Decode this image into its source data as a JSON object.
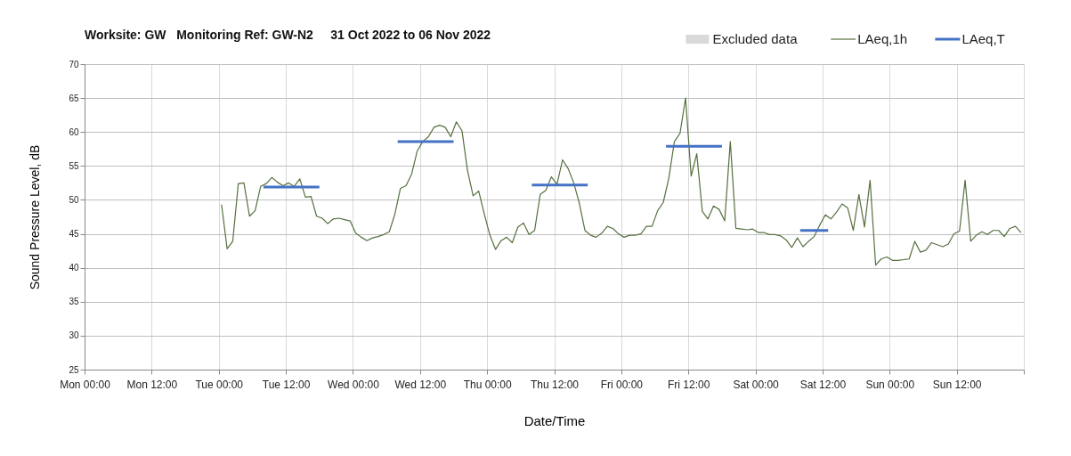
{
  "chart_data": {
    "type": "line",
    "title": "Worksite: GW   Monitoring Ref: GW-N2     31 Oct 2022 to 06 Nov 2022",
    "xlabel": "Date/Time",
    "ylabel": "Sound Pressure Level, dB",
    "xlim": [
      "2022-10-31T00:00",
      "2022-11-07T00:00"
    ],
    "ylim": [
      25,
      70
    ],
    "xticks": [
      {
        "value": "2022-10-31T00:00",
        "label": "Mon 00:00"
      },
      {
        "value": "2022-10-31T12:00",
        "label": "Mon 12:00"
      },
      {
        "value": "2022-11-01T00:00",
        "label": "Tue 00:00"
      },
      {
        "value": "2022-11-01T12:00",
        "label": "Tue 12:00"
      },
      {
        "value": "2022-11-02T00:00",
        "label": "Wed 00:00"
      },
      {
        "value": "2022-11-02T12:00",
        "label": "Wed 12:00"
      },
      {
        "value": "2022-11-03T00:00",
        "label": "Thu 00:00"
      },
      {
        "value": "2022-11-03T12:00",
        "label": "Thu 12:00"
      },
      {
        "value": "2022-11-04T00:00",
        "label": "Fri 00:00"
      },
      {
        "value": "2022-11-04T12:00",
        "label": "Fri 12:00"
      },
      {
        "value": "2022-11-05T00:00",
        "label": "Sat 00:00"
      },
      {
        "value": "2022-11-05T12:00",
        "label": "Sat 12:00"
      },
      {
        "value": "2022-11-06T00:00",
        "label": "Sun 00:00"
      },
      {
        "value": "2022-11-06T12:00",
        "label": "Sun 12:00"
      },
      {
        "value": "2022-11-07T00:00",
        "label": null
      }
    ],
    "yticks": [
      25,
      30,
      35,
      40,
      45,
      50,
      55,
      60,
      65,
      70
    ],
    "grid": true,
    "legend": "top right",
    "series": [
      {
        "name": "Excluded data",
        "type": "bar",
        "color": "#d9d9d9"
      },
      {
        "name": "LAeq,1h",
        "color": "#56703f",
        "x": [
          "2022-11-01T00:30",
          "2022-11-01T01:30",
          "2022-11-01T02:30",
          "2022-11-01T03:30",
          "2022-11-01T04:30",
          "2022-11-01T05:30",
          "2022-11-01T06:30",
          "2022-11-01T07:30",
          "2022-11-01T08:30",
          "2022-11-01T09:30",
          "2022-11-01T10:30",
          "2022-11-01T11:30",
          "2022-11-01T12:30",
          "2022-11-01T13:30",
          "2022-11-01T14:30",
          "2022-11-01T15:30",
          "2022-11-01T16:30",
          "2022-11-01T17:30",
          "2022-11-01T18:30",
          "2022-11-01T19:30",
          "2022-11-01T20:30",
          "2022-11-01T21:30",
          "2022-11-01T22:30",
          "2022-11-01T23:30",
          "2022-11-02T00:30",
          "2022-11-02T01:30",
          "2022-11-02T02:30",
          "2022-11-02T03:30",
          "2022-11-02T04:30",
          "2022-11-02T05:30",
          "2022-11-02T06:30",
          "2022-11-02T07:30",
          "2022-11-02T08:30",
          "2022-11-02T09:30",
          "2022-11-02T10:30",
          "2022-11-02T11:30",
          "2022-11-02T12:30",
          "2022-11-02T13:30",
          "2022-11-02T14:30",
          "2022-11-02T15:30",
          "2022-11-02T16:30",
          "2022-11-02T17:30",
          "2022-11-02T18:30",
          "2022-11-02T19:30",
          "2022-11-02T20:30",
          "2022-11-02T21:30",
          "2022-11-02T22:30",
          "2022-11-02T23:30",
          "2022-11-03T00:30",
          "2022-11-03T01:30",
          "2022-11-03T02:30",
          "2022-11-03T03:30",
          "2022-11-03T04:30",
          "2022-11-03T05:30",
          "2022-11-03T06:30",
          "2022-11-03T07:30",
          "2022-11-03T08:30",
          "2022-11-03T09:30",
          "2022-11-03T10:30",
          "2022-11-03T11:30",
          "2022-11-03T12:30",
          "2022-11-03T13:30",
          "2022-11-03T14:30",
          "2022-11-03T15:30",
          "2022-11-03T16:30",
          "2022-11-03T17:30",
          "2022-11-03T18:30",
          "2022-11-03T19:30",
          "2022-11-03T20:30",
          "2022-11-03T21:30",
          "2022-11-03T22:30",
          "2022-11-03T23:30",
          "2022-11-04T00:30",
          "2022-11-04T01:30",
          "2022-11-04T02:30",
          "2022-11-04T03:30",
          "2022-11-04T04:30",
          "2022-11-04T05:30",
          "2022-11-04T06:30",
          "2022-11-04T07:30",
          "2022-11-04T08:30",
          "2022-11-04T09:30",
          "2022-11-04T10:30",
          "2022-11-04T11:30",
          "2022-11-04T12:30",
          "2022-11-04T13:30",
          "2022-11-04T14:30",
          "2022-11-04T15:30",
          "2022-11-04T16:30",
          "2022-11-04T17:30",
          "2022-11-04T18:30",
          "2022-11-04T19:30",
          "2022-11-04T20:30",
          "2022-11-04T21:30",
          "2022-11-04T22:30",
          "2022-11-04T23:30",
          "2022-11-05T00:30",
          "2022-11-05T01:30",
          "2022-11-05T02:30",
          "2022-11-05T03:30",
          "2022-11-05T04:30",
          "2022-11-05T05:30",
          "2022-11-05T06:30",
          "2022-11-05T07:30",
          "2022-11-05T08:30",
          "2022-11-05T09:30",
          "2022-11-05T10:30",
          "2022-11-05T11:30",
          "2022-11-05T12:30",
          "2022-11-05T13:30",
          "2022-11-05T14:30",
          "2022-11-05T15:30",
          "2022-11-05T16:30",
          "2022-11-05T17:30",
          "2022-11-05T18:30",
          "2022-11-05T19:30",
          "2022-11-05T20:30",
          "2022-11-05T21:30",
          "2022-11-05T22:30",
          "2022-11-05T23:30",
          "2022-11-06T00:30",
          "2022-11-06T01:30",
          "2022-11-06T02:30",
          "2022-11-06T03:30",
          "2022-11-06T04:30",
          "2022-11-06T05:30",
          "2022-11-06T06:30",
          "2022-11-06T07:30",
          "2022-11-06T08:30",
          "2022-11-06T09:30",
          "2022-11-06T10:30",
          "2022-11-06T11:30",
          "2022-11-06T12:30",
          "2022-11-06T13:30",
          "2022-11-06T14:30",
          "2022-11-06T15:30",
          "2022-11-06T16:30",
          "2022-11-06T17:30",
          "2022-11-06T18:30",
          "2022-11-06T19:30",
          "2022-11-06T20:30",
          "2022-11-06T21:30",
          "2022-11-06T22:30",
          "2022-11-06T23:30"
        ],
        "values": [
          49.3,
          42.8,
          43.9,
          52.4,
          52.5,
          47.6,
          48.4,
          52.0,
          52.4,
          53.3,
          52.6,
          52.1,
          52.5,
          52.0,
          53.1,
          50.4,
          50.5,
          47.6,
          47.3,
          46.5,
          47.2,
          47.3,
          47.1,
          46.9,
          45.1,
          44.5,
          44.0,
          44.4,
          44.6,
          44.9,
          45.3,
          47.9,
          51.7,
          52.1,
          53.8,
          57.2,
          58.6,
          59.3,
          60.7,
          61.0,
          60.7,
          59.3,
          61.5,
          60.2,
          54.3,
          50.6,
          51.3,
          47.9,
          44.8,
          42.7,
          44.0,
          44.5,
          43.7,
          46.0,
          46.6,
          44.9,
          45.5,
          50.8,
          51.4,
          53.4,
          52.3,
          55.9,
          54.6,
          52.5,
          49.5,
          45.5,
          44.8,
          44.5,
          45.1,
          46.1,
          45.8,
          45.0,
          44.5,
          44.8,
          44.8,
          45.0,
          46.1,
          46.1,
          48.4,
          49.6,
          53.2,
          58.6,
          59.8,
          65.0,
          53.5,
          56.8,
          48.3,
          47.2,
          49.1,
          48.6,
          46.9,
          58.6,
          45.8,
          45.7,
          45.6,
          45.7,
          45.2,
          45.2,
          44.9,
          44.9,
          44.7,
          44.1,
          43.0,
          44.4,
          43.1,
          43.9,
          44.6,
          46.3,
          47.8,
          47.2,
          48.2,
          49.4,
          48.8,
          45.5,
          50.8,
          46.0,
          52.9,
          40.4,
          41.3,
          41.6,
          41.1,
          41.1,
          41.2,
          41.3,
          43.9,
          42.3,
          42.6,
          43.7,
          43.4,
          43.1,
          43.5,
          45.0,
          45.4,
          52.9,
          43.9,
          44.8,
          45.3,
          44.9,
          45.5,
          45.5,
          44.6,
          45.8,
          46.1,
          45.2
        ]
      },
      {
        "name": "LAeq,T",
        "color": "#4472c4",
        "x": [
          "2022-11-01T08:00",
          "2022-11-01T18:00",
          "2022-11-02T01:00",
          "2022-11-02T08:00",
          "2022-11-02T18:00",
          "2022-11-03T01:00",
          "2022-11-03T08:00",
          "2022-11-03T18:00",
          "2022-11-04T01:00",
          "2022-11-04T08:00",
          "2022-11-04T18:00",
          "2022-11-05T01:00",
          "2022-11-05T08:00",
          "2022-11-05T13:00"
        ],
        "values": [
          51.9,
          51.9,
          null,
          58.6,
          58.6,
          null,
          52.2,
          52.2,
          null,
          57.9,
          57.9,
          null,
          45.5,
          45.5
        ]
      }
    ]
  }
}
